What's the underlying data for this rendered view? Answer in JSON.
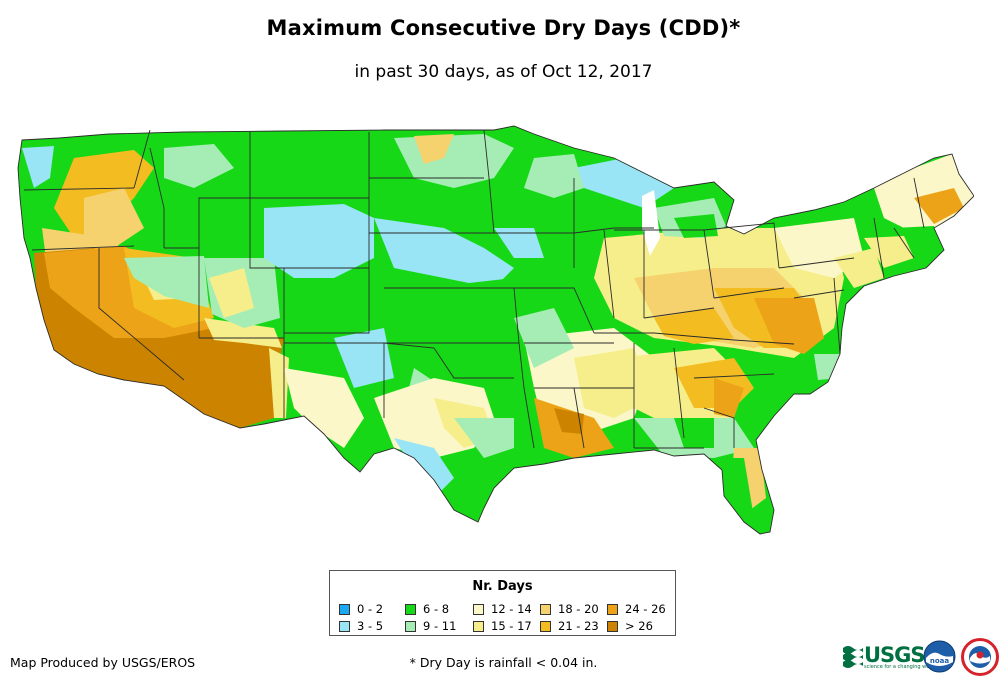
{
  "title": "Maximum Consecutive Dry Days (CDD)*",
  "subtitle": "in past 30 days, as of Oct 12, 2017",
  "legend": {
    "title": "Nr. Days",
    "items": [
      {
        "label": "0 - 2",
        "color": "#1aa8f0"
      },
      {
        "label": "3 - 5",
        "color": "#99e5f6"
      },
      {
        "label": "6 - 8",
        "color": "#17d817"
      },
      {
        "label": "9 - 11",
        "color": "#a5edb5"
      },
      {
        "label": "12 - 14",
        "color": "#fbf7c8"
      },
      {
        "label": "15 - 17",
        "color": "#f6ee8a"
      },
      {
        "label": "18 - 20",
        "color": "#f5d26e"
      },
      {
        "label": "21 - 23",
        "color": "#f3bd22"
      },
      {
        "label": "24 - 26",
        "color": "#eda317"
      },
      {
        "label": "> 26",
        "color": "#cc8400"
      }
    ]
  },
  "credit": "Map Produced by USGS/EROS",
  "footnote": "* Dry Day is rainfall < 0.04 in.",
  "logos": {
    "usgs": "USGS",
    "usgs_tagline": "science for a changing world",
    "noaa": "noaa"
  },
  "colors": {
    "state_border": "#2b2b2b",
    "usgs_green": "#006f41",
    "noaa_blue": "#1e5ea8",
    "nws_red": "#d6232b"
  }
}
